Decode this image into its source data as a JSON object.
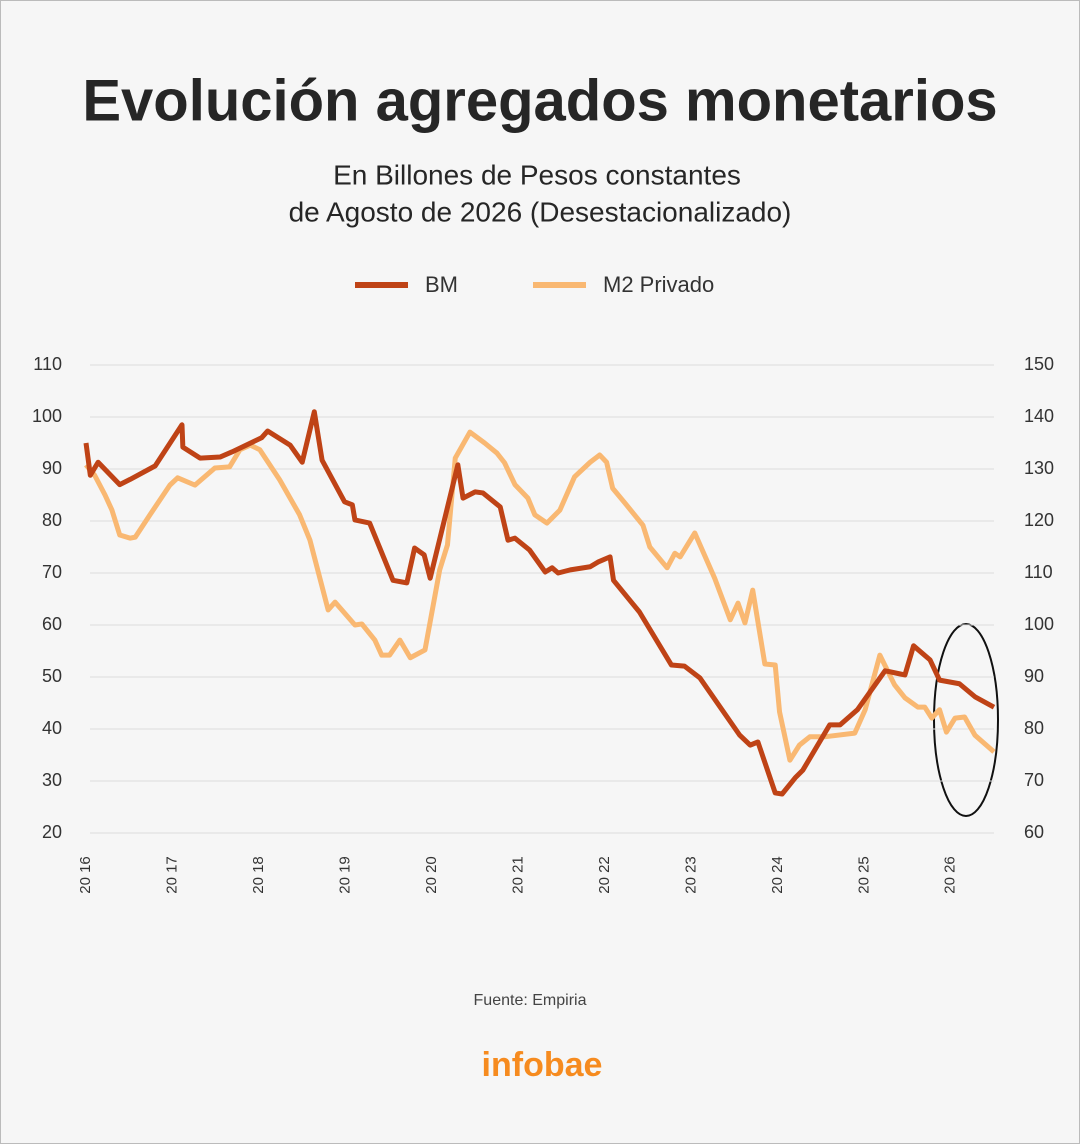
{
  "chart_data": {
    "type": "line",
    "title": "Evolución agregados monetarios",
    "subtitle": [
      "En Billones de Pesos constantes",
      "de Agosto de 2026 (Desestacionalizado)"
    ],
    "xlim": [
      2016,
      2026.5
    ],
    "xticks": [
      {
        "value": 2016,
        "label": "20 16"
      },
      {
        "value": 2017,
        "label": "20 17"
      },
      {
        "value": 2018,
        "label": "20 18"
      },
      {
        "value": 2019,
        "label": "20 19"
      },
      {
        "value": 2020,
        "label": "20 20"
      },
      {
        "value": 2021,
        "label": "20 21"
      },
      {
        "value": 2022,
        "label": "20 22"
      },
      {
        "value": 2023,
        "label": "20 23"
      },
      {
        "value": 2024,
        "label": "20 24"
      },
      {
        "value": 2025,
        "label": "20 25"
      },
      {
        "value": 2026,
        "label": "20 26"
      }
    ],
    "ylim": [
      20,
      110
    ],
    "yticks": [
      20,
      30,
      40,
      50,
      60,
      70,
      80,
      90,
      100,
      110
    ],
    "y2lim": [
      60,
      150
    ],
    "y2ticks": [
      60,
      70,
      80,
      90,
      100,
      110,
      120,
      130,
      140,
      150
    ],
    "grid": true,
    "series": [
      {
        "name": "BM",
        "color": "#bf4316",
        "x": [
          2016.0,
          2016.05,
          2016.14,
          2016.39,
          2016.51,
          2016.8,
          2017.11,
          2017.12,
          2017.32,
          2017.55,
          2017.69,
          2018.03,
          2018.1,
          2018.36,
          2018.5,
          2018.64,
          2018.73,
          2018.99,
          2019.08,
          2019.11,
          2019.28,
          2019.55,
          2019.71,
          2019.8,
          2019.91,
          2019.98,
          2020.3,
          2020.36,
          2020.5,
          2020.59,
          2020.79,
          2020.88,
          2020.96,
          2021.13,
          2021.31,
          2021.39,
          2021.46,
          2021.6,
          2021.83,
          2021.92,
          2022.06,
          2022.1,
          2022.4,
          2022.77,
          2022.92,
          2023.1,
          2023.56,
          2023.68,
          2023.77,
          2023.97,
          2024.05,
          2024.2,
          2024.29,
          2024.6,
          2024.72,
          2024.92,
          2025.24,
          2025.41,
          2025.47,
          2025.57,
          2025.76,
          2025.87,
          2026.1,
          2026.28,
          2026.5
        ],
        "values": [
          95,
          88.8,
          91.3,
          87,
          88,
          90.6,
          98.5,
          94.2,
          92.1,
          92.3,
          93.3,
          96,
          97.3,
          94.6,
          91.3,
          101,
          91.7,
          83.7,
          83.1,
          80.2,
          79.6,
          68.6,
          68.1,
          74.8,
          73.5,
          69,
          90.8,
          84.4,
          85.6,
          85.4,
          82.7,
          76.3,
          76.7,
          74.4,
          70.2,
          71,
          70,
          70.6,
          71.2,
          72.1,
          73.1,
          68.6,
          62.5,
          52.3,
          52.1,
          49.8,
          38.8,
          36.9,
          37.5,
          27.7,
          27.5,
          30.6,
          32.1,
          40.8,
          40.8,
          43.7,
          51.2,
          50.6,
          50.4,
          56,
          53.3,
          49.4,
          48.7,
          46.2,
          44.2
        ]
      },
      {
        "name": "M2 Privado",
        "color": "#f9b872",
        "axis": "y2",
        "x": [
          2016.0,
          2016.1,
          2016.22,
          2016.3,
          2016.39,
          2016.51,
          2016.57,
          2016.74,
          2016.97,
          2017.06,
          2017.26,
          2017.49,
          2017.66,
          2017.78,
          2017.9,
          2018.01,
          2018.24,
          2018.47,
          2018.59,
          2018.8,
          2018.88,
          2019.11,
          2019.19,
          2019.34,
          2019.42,
          2019.51,
          2019.63,
          2019.75,
          2019.92,
          2020.09,
          2020.18,
          2020.27,
          2020.44,
          2020.61,
          2020.75,
          2020.84,
          2020.96,
          2021.11,
          2021.19,
          2021.33,
          2021.48,
          2021.65,
          2021.83,
          2021.94,
          2022.02,
          2022.09,
          2022.23,
          2022.44,
          2022.52,
          2022.72,
          2022.81,
          2022.87,
          2023.04,
          2023.27,
          2023.45,
          2023.54,
          2023.62,
          2023.71,
          2023.85,
          2023.97,
          2024.02,
          2024.14,
          2024.25,
          2024.37,
          2024.54,
          2024.89,
          2025.01,
          2025.18,
          2025.35,
          2025.47,
          2025.62,
          2025.7,
          2025.78,
          2025.87,
          2025.95,
          2026.05,
          2026.16,
          2026.28,
          2026.5
        ],
        "values": [
          130.8,
          128.8,
          125,
          122.1,
          117.3,
          116.7,
          116.9,
          121.2,
          126.9,
          128.3,
          126.9,
          130.2,
          130.4,
          133.7,
          134.6,
          133.7,
          127.9,
          121.2,
          116.3,
          102.9,
          104.4,
          100,
          100.2,
          97.1,
          94.2,
          94.2,
          97.1,
          93.7,
          95.2,
          110.6,
          115.4,
          132.1,
          137.1,
          135,
          133.1,
          131.2,
          127,
          124.4,
          121.2,
          119.6,
          122.1,
          128.5,
          131.3,
          132.7,
          131.3,
          126.3,
          123.5,
          119.2,
          115,
          111,
          113.8,
          113.1,
          117.7,
          109,
          101,
          104.2,
          100.4,
          106.7,
          92.5,
          92.3,
          83.3,
          74,
          76.9,
          78.5,
          78.5,
          79.2,
          83.7,
          94.2,
          88.5,
          86,
          84.2,
          84.2,
          82.1,
          83.7,
          79.4,
          82.1,
          82.3,
          78.8,
          75.6
        ]
      }
    ]
  },
  "footer": {
    "source": "Fuente: Empiria",
    "logo": "infobae"
  }
}
